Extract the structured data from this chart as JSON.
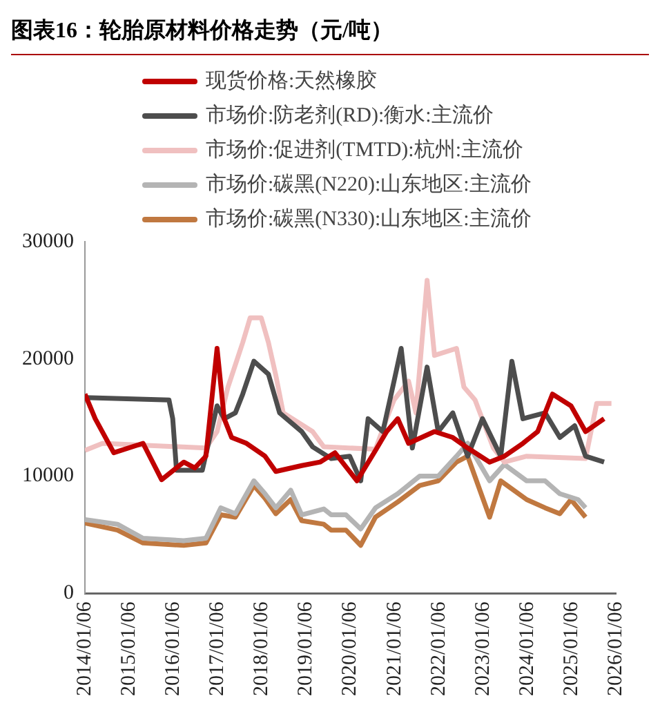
{
  "chart_data": {
    "type": "line",
    "title": "图表16：轮胎原材料价格走势（元/吨）",
    "xlim": [
      "2014-01-06",
      "2026-01-06"
    ],
    "xticks": [
      {
        "value": "2014-01-06",
        "label": "2014/01/06"
      },
      {
        "value": "2015-01-06",
        "label": "2015/01/06"
      },
      {
        "value": "2016-01-06",
        "label": "2016/01/06"
      },
      {
        "value": "2017-01-06",
        "label": "2017/01/06"
      },
      {
        "value": "2018-01-06",
        "label": "2018/01/06"
      },
      {
        "value": "2019-01-06",
        "label": "2019/01/06"
      },
      {
        "value": "2020-01-06",
        "label": "2020/01/06"
      },
      {
        "value": "2021-01-06",
        "label": "2021/01/06"
      },
      {
        "value": "2022-01-06",
        "label": "2022/01/06"
      },
      {
        "value": "2023-01-06",
        "label": "2023/01/06"
      },
      {
        "value": "2024-01-06",
        "label": "2024/01/06"
      },
      {
        "value": "2025-01-06",
        "label": "2025/01/06"
      },
      {
        "value": "2026-01-06",
        "label": "2026/01/06"
      }
    ],
    "ylim": [
      0,
      30000
    ],
    "yticks": [
      0,
      10000,
      20000,
      30000
    ],
    "grid": false,
    "legend": "top left",
    "marker": "none",
    "line_style": "solid",
    "series": [
      {
        "name": "现货价格:天然橡胶",
        "color": "#c00000",
        "x": [
          "2014-01-06",
          "2014-04",
          "2014-09",
          "2015-05",
          "2015-10",
          "2016-04",
          "2016-07",
          "2016-10",
          "2017-01",
          "2017-03",
          "2017-05",
          "2017-09",
          "2018-02",
          "2018-05",
          "2018-12",
          "2019-05",
          "2019-09",
          "2020-03",
          "2020-08",
          "2020-11",
          "2021-02",
          "2021-05",
          "2021-12",
          "2022-05",
          "2022-09",
          "2023-03",
          "2023-07",
          "2023-12",
          "2024-04",
          "2024-08",
          "2025-01",
          "2025-05",
          "2025-10"
        ],
        "values": [
          17000,
          14900,
          12000,
          12800,
          9700,
          11200,
          10700,
          11700,
          20900,
          14900,
          13300,
          12800,
          11700,
          10400,
          10900,
          11200,
          12000,
          9600,
          12200,
          13800,
          14900,
          12800,
          13800,
          13300,
          12400,
          11200,
          11700,
          12800,
          13800,
          17000,
          16000,
          13800,
          14900
        ]
      },
      {
        "name": "市场价:防老剂(RD):衡水:主流价",
        "color": "#4d4d4d",
        "x": [
          "2014-01-06",
          "2015-12",
          "2016-01",
          "2016-02",
          "2016-09",
          "2017-01",
          "2017-03",
          "2017-06",
          "2017-08",
          "2017-11",
          "2018-03",
          "2018-06",
          "2018-12",
          "2019-03",
          "2019-08",
          "2020-01",
          "2020-04",
          "2020-06",
          "2020-10",
          "2021-01",
          "2021-03",
          "2021-06",
          "2021-10",
          "2022-01",
          "2022-05",
          "2022-09",
          "2023-01",
          "2023-06",
          "2023-09",
          "2023-12",
          "2024-06",
          "2024-10",
          "2025-02",
          "2025-05",
          "2025-10"
        ],
        "values": [
          16700,
          16500,
          14900,
          10500,
          10500,
          16000,
          14900,
          15400,
          17000,
          19800,
          18700,
          15400,
          13800,
          12500,
          11500,
          11700,
          9600,
          14900,
          13800,
          18100,
          20900,
          12400,
          19300,
          13800,
          15400,
          11700,
          14900,
          11700,
          19800,
          14900,
          15400,
          13300,
          14300,
          11700,
          11200
        ]
      },
      {
        "name": "市场价:促进剂(TMTD):杭州:主流价",
        "color": "#f0c0c0",
        "x": [
          "2014-01-06",
          "2014-06",
          "2016-10",
          "2017-01",
          "2017-04",
          "2017-08",
          "2017-10",
          "2018-01",
          "2018-03",
          "2018-05",
          "2018-07",
          "2019-03",
          "2019-06",
          "2020-08",
          "2020-11",
          "2021-01",
          "2021-05",
          "2021-07",
          "2021-10",
          "2021-12",
          "2022-06",
          "2022-08",
          "2022-11",
          "2023-04",
          "2023-07",
          "2024-01",
          "2025-05",
          "2025-08",
          "2025-12"
        ],
        "values": [
          12200,
          12800,
          12400,
          13800,
          17600,
          21400,
          23500,
          23500,
          21400,
          18600,
          15400,
          13800,
          12500,
          12300,
          14900,
          16500,
          18100,
          15400,
          26700,
          20300,
          20900,
          17600,
          16500,
          12400,
          11200,
          11700,
          11500,
          16200,
          16200
        ]
      },
      {
        "name": "市场价:碳黑(N220):山东地区:主流价",
        "color": "#b4b4b4",
        "x": [
          "2014-01-06",
          "2014-10",
          "2015-05",
          "2016-04",
          "2016-10",
          "2017-02",
          "2017-06",
          "2017-11",
          "2018-02",
          "2018-05",
          "2018-09",
          "2018-12",
          "2019-06",
          "2019-08",
          "2019-12",
          "2020-04",
          "2020-08",
          "2021-02",
          "2021-08",
          "2022-01",
          "2022-06",
          "2022-09",
          "2023-03",
          "2023-07",
          "2024-01",
          "2024-06",
          "2024-10",
          "2025-03",
          "2025-05"
        ],
        "values": [
          6300,
          5900,
          4700,
          4500,
          4700,
          7300,
          6800,
          9600,
          8500,
          7300,
          8800,
          6700,
          7200,
          6700,
          6700,
          5500,
          7300,
          8500,
          10000,
          10000,
          11700,
          12800,
          9600,
          11000,
          9600,
          9600,
          8500,
          8000,
          7300
        ]
      },
      {
        "name": "市场价:碳黑(N330):山东地区:主流价",
        "color": "#c07840",
        "x": [
          "2014-01-06",
          "2014-10",
          "2015-05",
          "2016-04",
          "2016-10",
          "2017-02",
          "2017-06",
          "2017-11",
          "2018-02",
          "2018-05",
          "2018-09",
          "2018-12",
          "2019-06",
          "2019-08",
          "2019-12",
          "2020-04",
          "2020-08",
          "2021-02",
          "2021-08",
          "2022-01",
          "2022-06",
          "2022-09",
          "2023-03",
          "2023-06",
          "2024-01",
          "2024-06",
          "2024-10",
          "2025-01",
          "2025-05"
        ],
        "values": [
          6000,
          5400,
          4300,
          4100,
          4300,
          6700,
          6500,
          9200,
          8100,
          6800,
          8000,
          6200,
          5900,
          5400,
          5400,
          4100,
          6500,
          7800,
          9200,
          9600,
          11200,
          11700,
          6500,
          9600,
          8000,
          7300,
          6800,
          8000,
          6500
        ]
      }
    ]
  }
}
